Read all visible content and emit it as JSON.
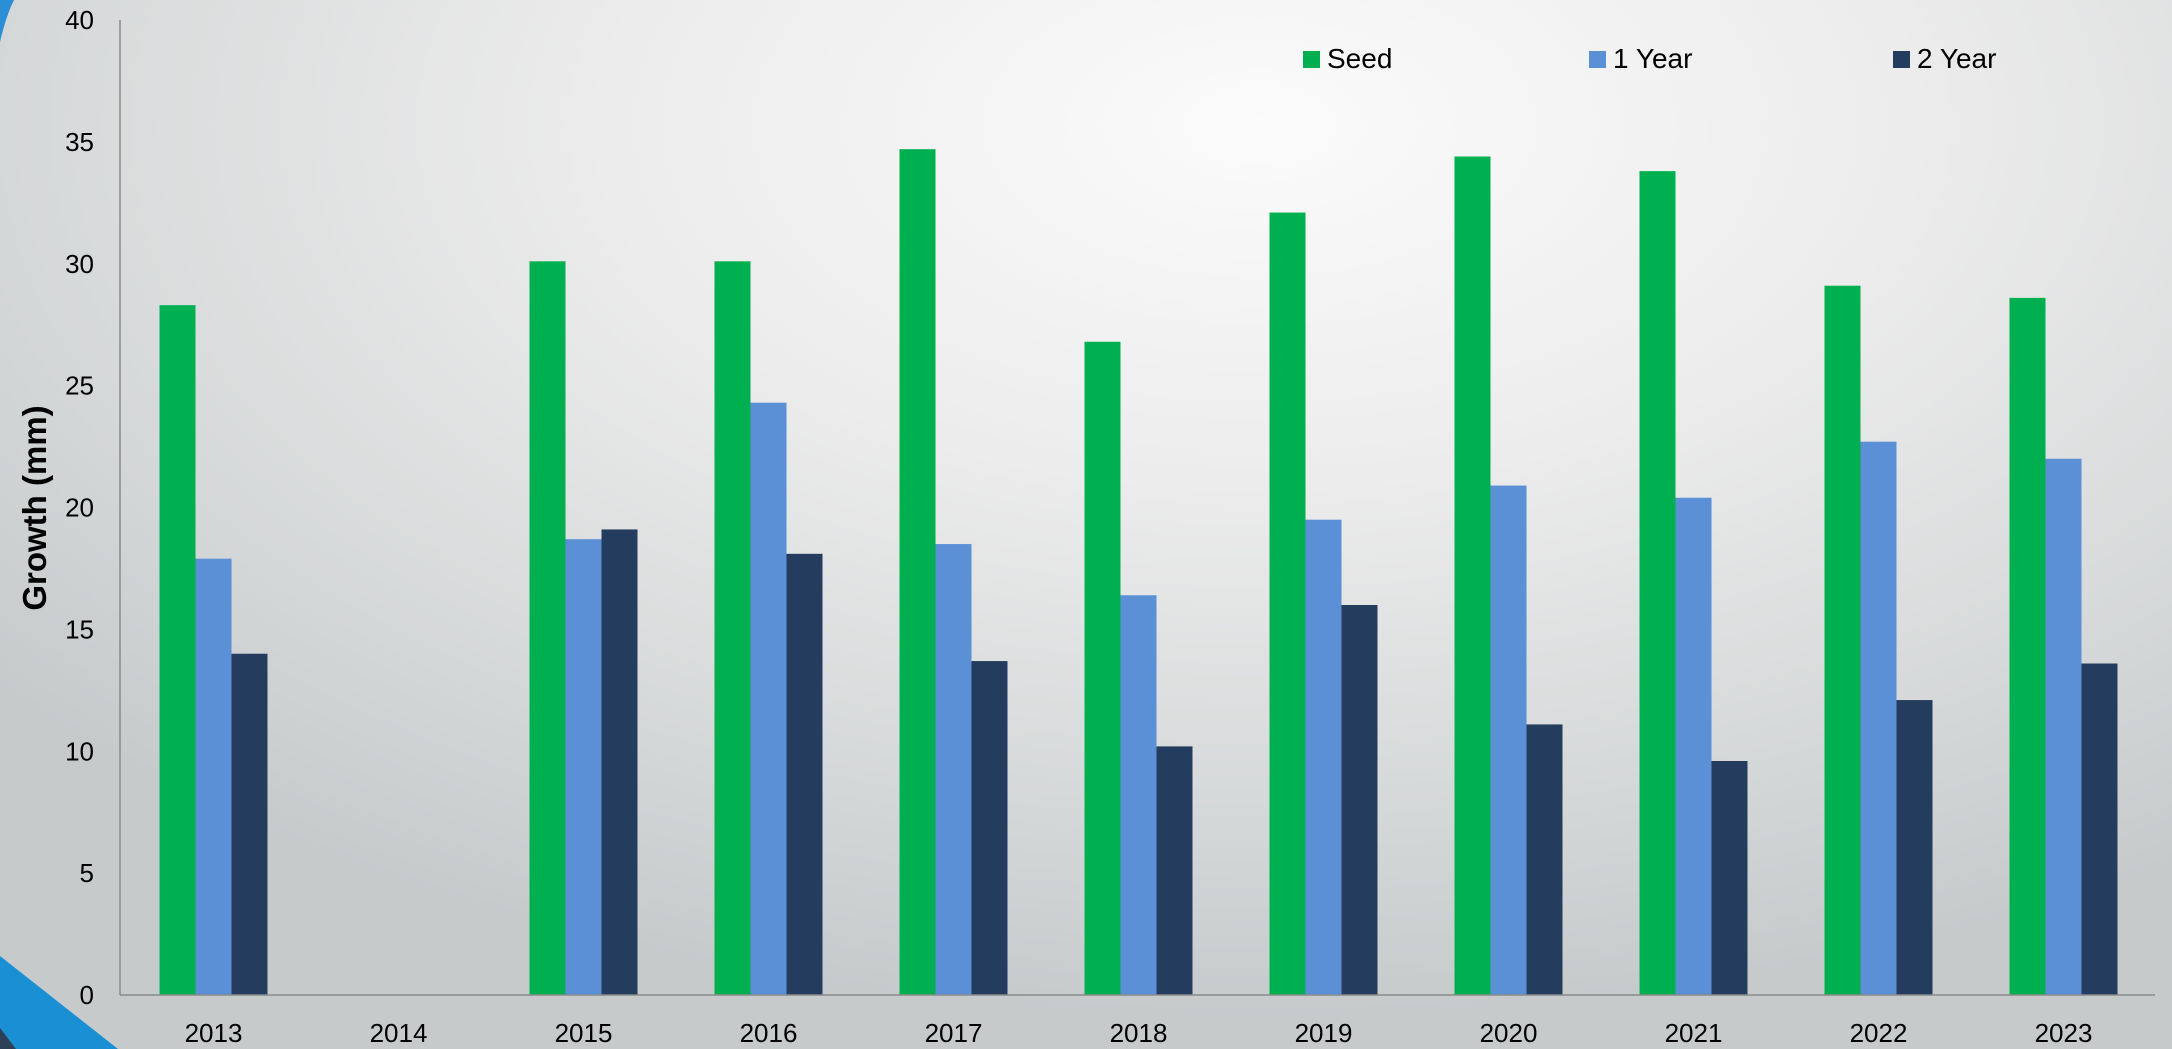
{
  "chart_data": {
    "type": "bar",
    "title": "",
    "xlabel": "",
    "ylabel": "Growth (mm)",
    "ylim": [
      0,
      40
    ],
    "yticks": [
      0,
      5,
      10,
      15,
      20,
      25,
      30,
      35,
      40
    ],
    "grid": false,
    "legend": "top-right",
    "categories": [
      "2013",
      "2014",
      "2015",
      "2016",
      "2017",
      "2018",
      "2019",
      "2020",
      "2021",
      "2022",
      "2023"
    ],
    "series": [
      {
        "name": "Seed",
        "color": "#00b050",
        "values": [
          28.3,
          null,
          30.1,
          30.1,
          34.7,
          26.8,
          32.1,
          34.4,
          33.8,
          29.1,
          28.6
        ]
      },
      {
        "name": "1 Year",
        "color": "#5b8fd6",
        "values": [
          17.9,
          null,
          18.7,
          24.3,
          18.5,
          16.4,
          19.5,
          20.9,
          20.4,
          22.7,
          22.0
        ]
      },
      {
        "name": "2 Year",
        "color": "#243d5e",
        "values": [
          14.0,
          null,
          19.1,
          18.1,
          13.7,
          10.2,
          16.0,
          11.1,
          9.6,
          12.1,
          13.6
        ]
      }
    ]
  }
}
